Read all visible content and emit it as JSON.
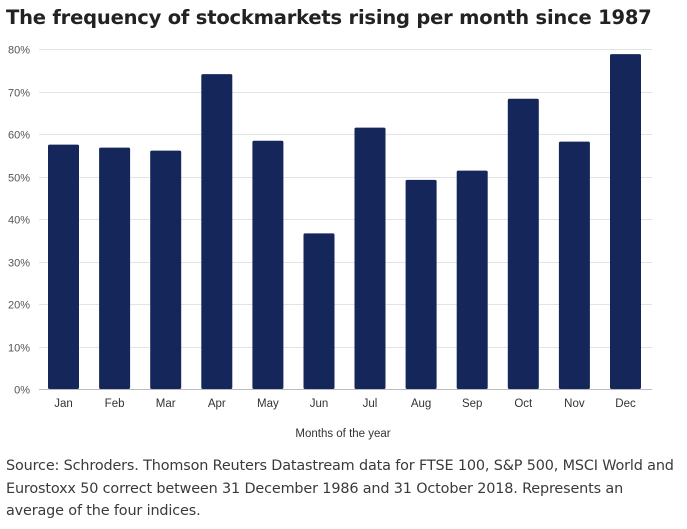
{
  "title": "The frequency of stockmarkets rising per month since 1987",
  "source": "Source: Schroders. Thomson Reuters Datastream data for FTSE 100, S&P 500, MSCI World and Eurostoxx 50 correct between 31 December 1986 and 31 October 2018. Represents an average of the four indices.",
  "colors": {
    "bar": "#15275a",
    "grid": "#e3e3e3",
    "baseline": "#bbbbbb"
  },
  "chart_data": {
    "type": "bar",
    "title": "The frequency of stockmarkets rising per month since 1987",
    "xlabel": "Months of the year",
    "ylabel": "",
    "categories": [
      "Jan",
      "Feb",
      "Mar",
      "Apr",
      "May",
      "Jun",
      "Jul",
      "Aug",
      "Sep",
      "Oct",
      "Nov",
      "Dec"
    ],
    "values": [
      57.5,
      56.8,
      56.1,
      74.1,
      58.4,
      36.6,
      61.5,
      49.2,
      51.4,
      68.3,
      58.2,
      78.8
    ],
    "ylim": [
      0,
      80
    ],
    "y_ticks": [
      "0%",
      "10%",
      "20%",
      "30%",
      "40%",
      "50%",
      "60%",
      "70%",
      "80%"
    ],
    "y_tick_values": [
      0,
      10,
      20,
      30,
      40,
      50,
      60,
      70,
      80
    ],
    "grid": true,
    "legend": "none"
  }
}
